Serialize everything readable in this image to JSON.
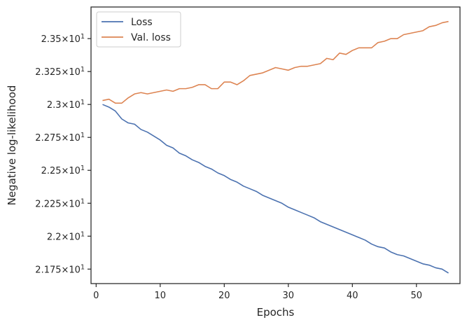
{
  "chart_data": {
    "type": "line",
    "xlabel": "Epochs",
    "ylabel": "Negative log-likelihood",
    "xlim": [
      -0.8,
      56.8
    ],
    "ylim": [
      21.64,
      23.74
    ],
    "x_ticks": [
      0,
      10,
      20,
      30,
      40,
      50
    ],
    "x_tick_labels": [
      "0",
      "10",
      "20",
      "30",
      "40",
      "50"
    ],
    "y_ticks": [
      21.75,
      22.0,
      22.25,
      22.5,
      22.75,
      23.0,
      23.25,
      23.5
    ],
    "y_tick_labels": [
      {
        "mantissa": "2.175",
        "base": "10",
        "exp": "1"
      },
      {
        "mantissa": "2.2",
        "base": "10",
        "exp": "1"
      },
      {
        "mantissa": "2.225",
        "base": "10",
        "exp": "1"
      },
      {
        "mantissa": "2.25",
        "base": "10",
        "exp": "1"
      },
      {
        "mantissa": "2.275",
        "base": "10",
        "exp": "1"
      },
      {
        "mantissa": "2.3",
        "base": "10",
        "exp": "1"
      },
      {
        "mantissa": "2.325",
        "base": "10",
        "exp": "1"
      },
      {
        "mantissa": "2.35",
        "base": "10",
        "exp": "1"
      }
    ],
    "grid": false,
    "legend_position": "upper-left",
    "x": [
      1,
      2,
      3,
      4,
      5,
      6,
      7,
      8,
      9,
      10,
      11,
      12,
      13,
      14,
      15,
      16,
      17,
      18,
      19,
      20,
      21,
      22,
      23,
      24,
      25,
      26,
      27,
      28,
      29,
      30,
      31,
      32,
      33,
      34,
      35,
      36,
      37,
      38,
      39,
      40,
      41,
      42,
      43,
      44,
      45,
      46,
      47,
      48,
      49,
      50,
      51,
      52,
      53,
      54,
      55
    ],
    "series": [
      {
        "name": "Loss",
        "color": "#4c72b0",
        "values": [
          23.0,
          22.98,
          22.95,
          22.89,
          22.86,
          22.85,
          22.81,
          22.79,
          22.76,
          22.73,
          22.69,
          22.67,
          22.63,
          22.61,
          22.58,
          22.56,
          22.53,
          22.51,
          22.48,
          22.46,
          22.43,
          22.41,
          22.38,
          22.36,
          22.34,
          22.31,
          22.29,
          22.27,
          22.25,
          22.22,
          22.2,
          22.18,
          22.16,
          22.14,
          22.11,
          22.09,
          22.07,
          22.05,
          22.03,
          22.01,
          21.99,
          21.97,
          21.94,
          21.92,
          21.91,
          21.88,
          21.86,
          21.85,
          21.83,
          21.81,
          21.79,
          21.78,
          21.76,
          21.75,
          21.72
        ]
      },
      {
        "name": "Val. loss",
        "color": "#dd8452",
        "values": [
          23.03,
          23.04,
          23.01,
          23.01,
          23.05,
          23.08,
          23.09,
          23.08,
          23.09,
          23.1,
          23.11,
          23.1,
          23.12,
          23.12,
          23.13,
          23.15,
          23.15,
          23.12,
          23.12,
          23.17,
          23.17,
          23.15,
          23.18,
          23.22,
          23.23,
          23.24,
          23.26,
          23.28,
          23.27,
          23.26,
          23.28,
          23.29,
          23.29,
          23.3,
          23.31,
          23.35,
          23.34,
          23.39,
          23.38,
          23.41,
          23.43,
          23.43,
          23.43,
          23.47,
          23.48,
          23.5,
          23.5,
          23.53,
          23.54,
          23.55,
          23.56,
          23.59,
          23.6,
          23.62,
          23.63
        ]
      }
    ]
  }
}
